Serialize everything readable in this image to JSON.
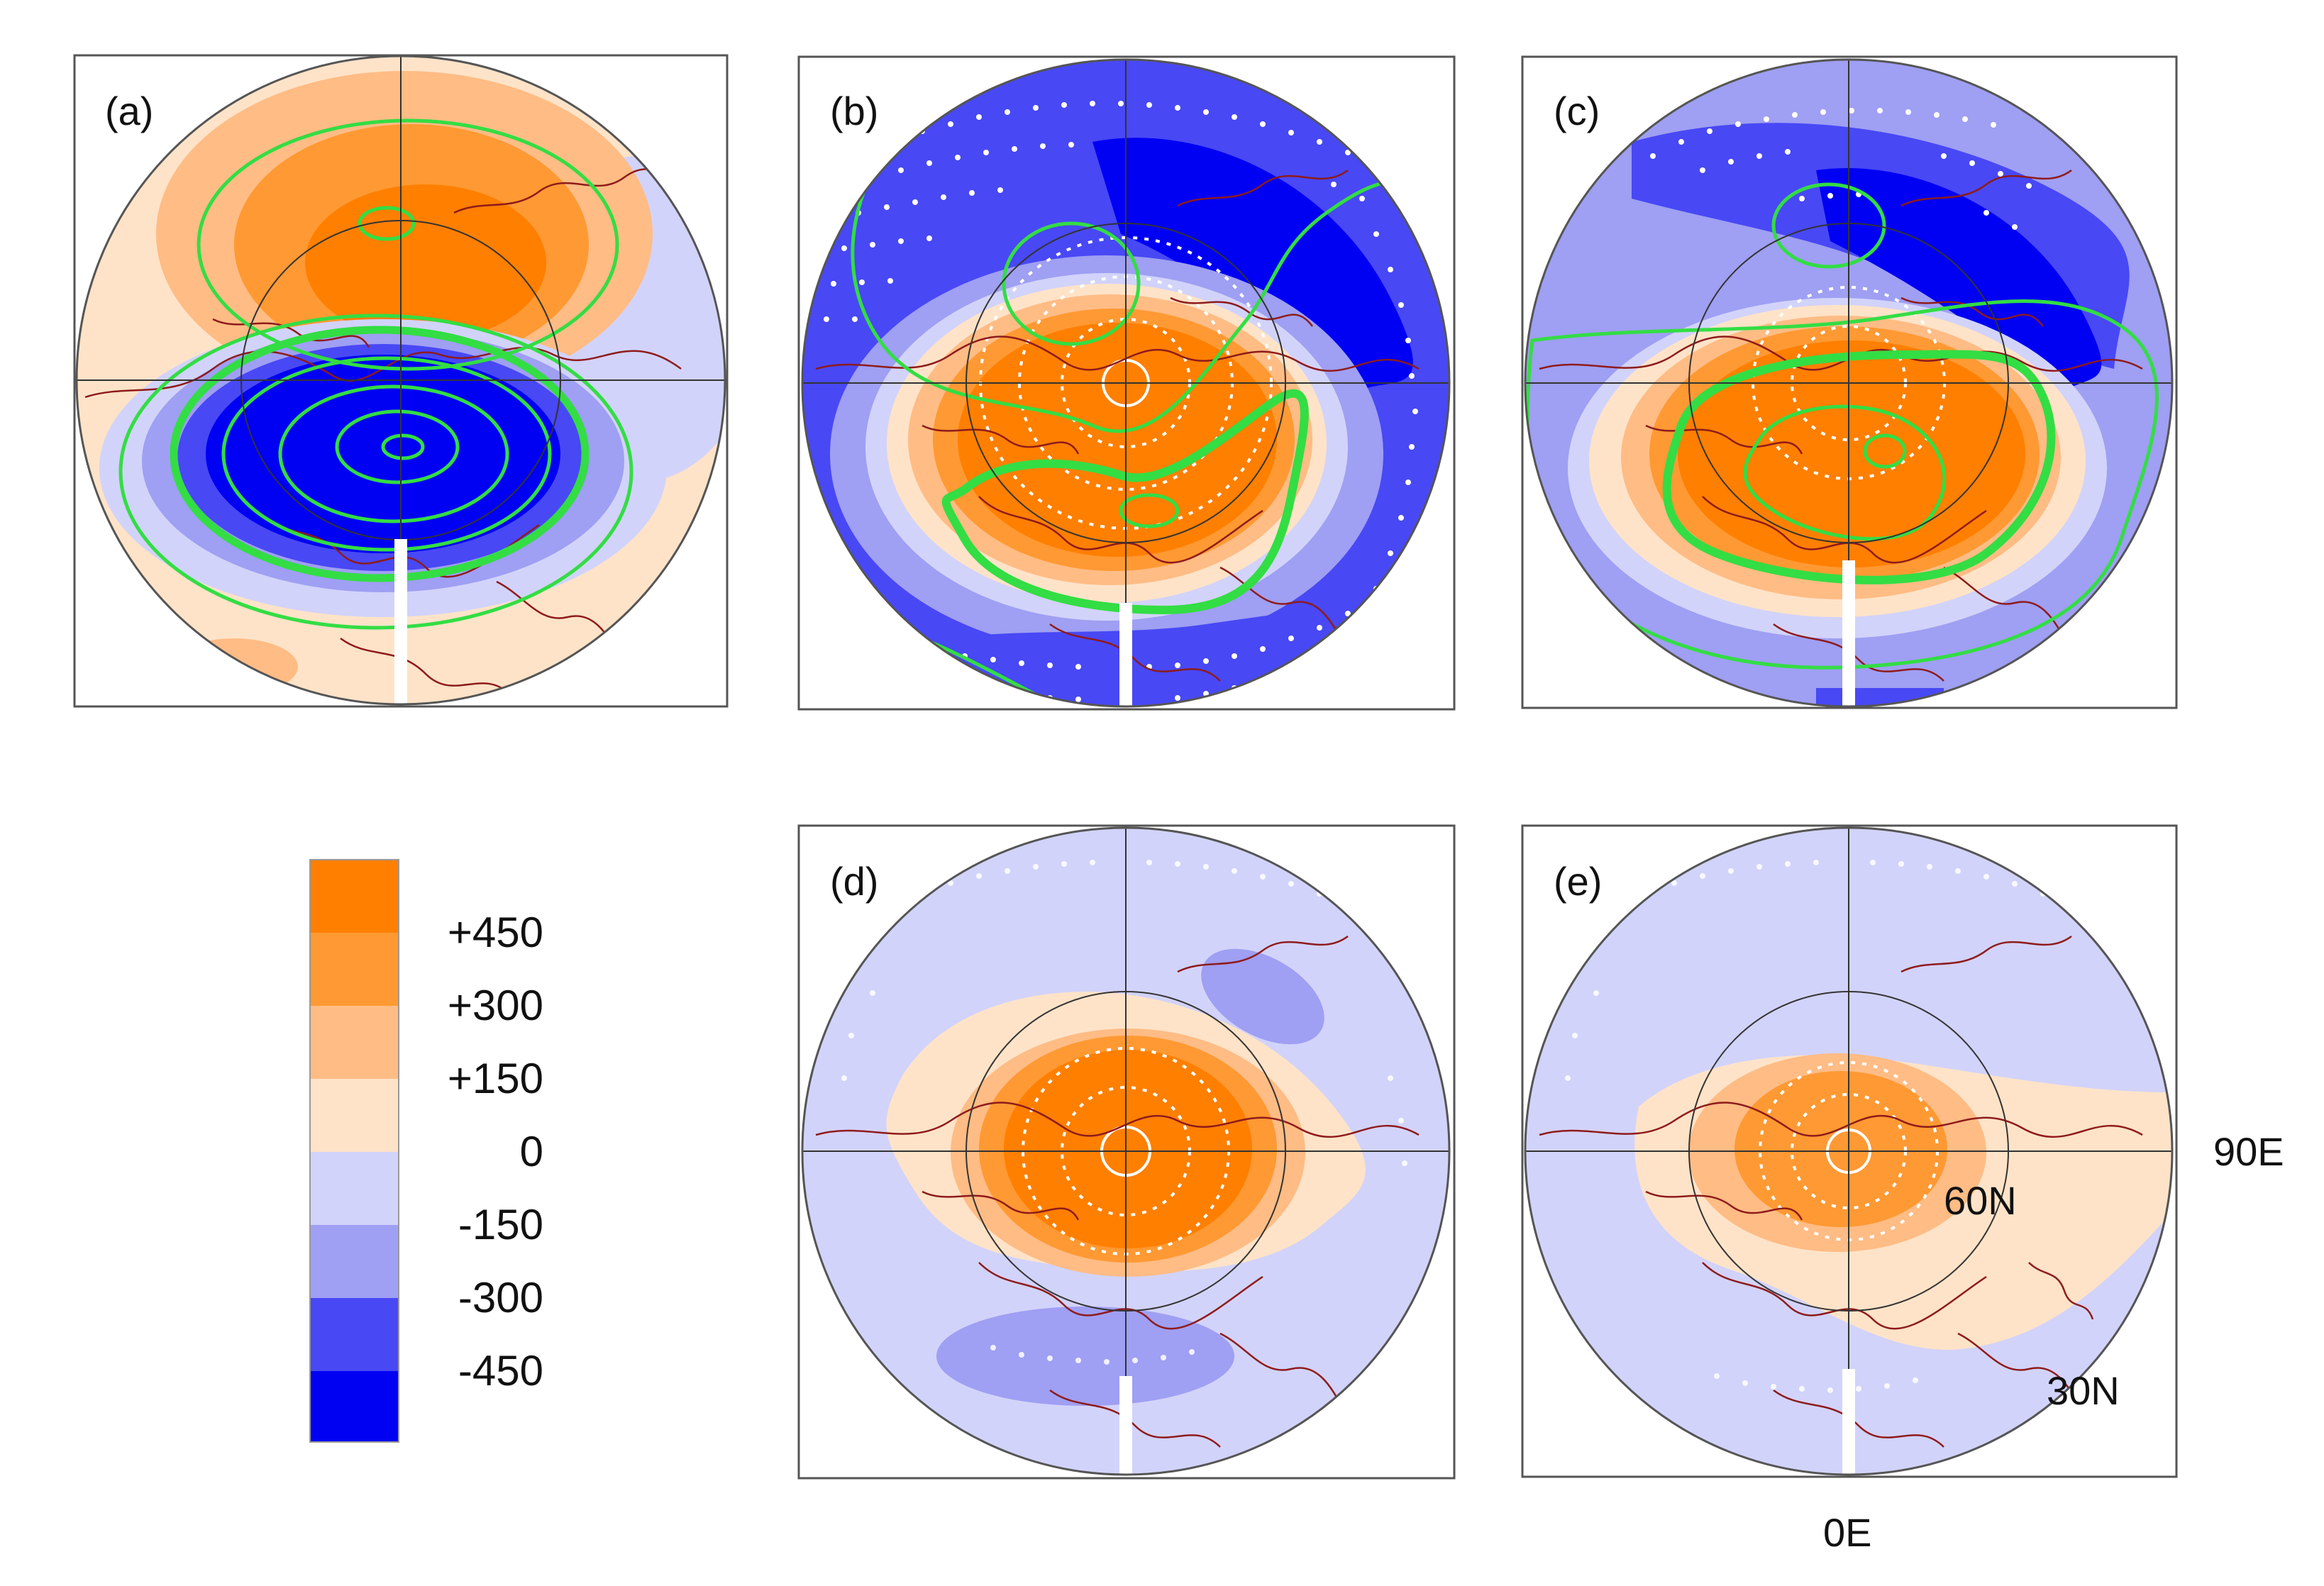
{
  "panels": [
    {
      "label": "(a)",
      "pattern": "A"
    },
    {
      "label": "(b)",
      "pattern": "B"
    },
    {
      "label": "(c)",
      "pattern": "C"
    },
    {
      "label": "(d)",
      "pattern": "D"
    },
    {
      "label": "(e)",
      "pattern": "E"
    }
  ],
  "legend": {
    "labels": [
      "+450",
      "+300",
      "+150",
      "0",
      "-150",
      "-300",
      "-450"
    ],
    "colors": [
      "#FF7F00",
      "#FF9933",
      "#FFBC85",
      "#FEE3C8",
      "#D2D3FA",
      "#9F9FF3",
      "#4848F5",
      "#0000F3"
    ]
  },
  "axis_labels": {
    "lon_90": "90E",
    "lon_0": "0E",
    "lat_60": "60N",
    "lat_30": "30N"
  },
  "colors": {
    "contour": "#33DD44",
    "coast": "#8E1B1B",
    "grid": "#333333"
  }
}
